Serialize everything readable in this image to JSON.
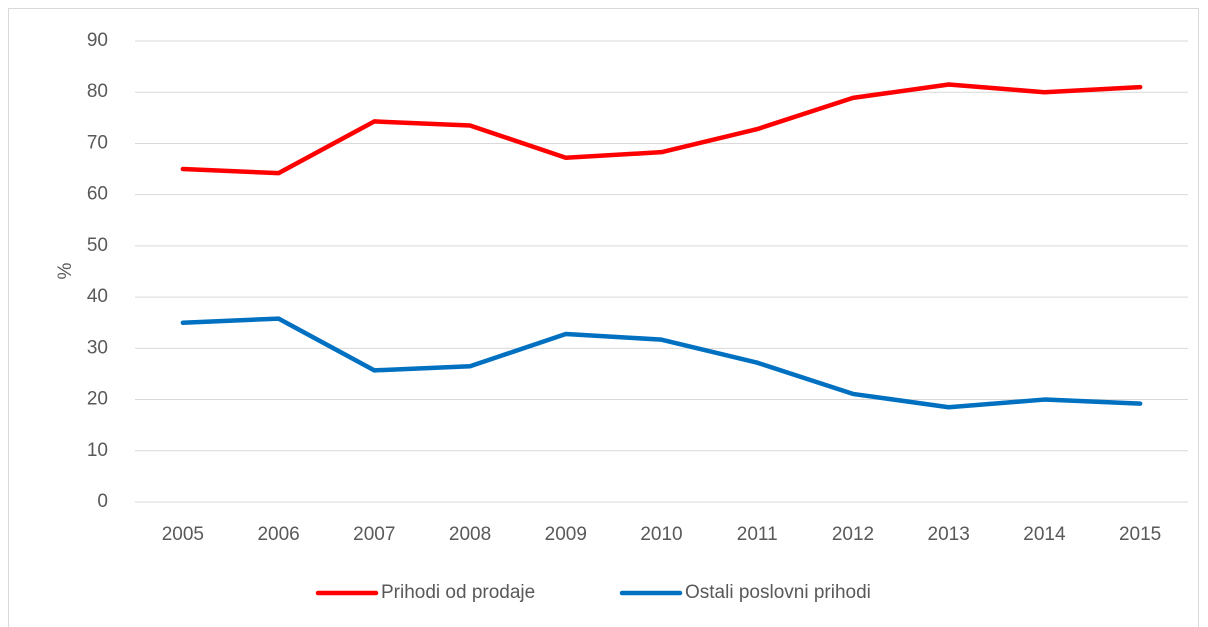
{
  "chart_data": {
    "type": "line",
    "ylabel": "%",
    "categories": [
      "2005",
      "2006",
      "2007",
      "2008",
      "2009",
      "2010",
      "2011",
      "2012",
      "2013",
      "2014",
      "2015"
    ],
    "series": [
      {
        "name": "Prihodi od prodaje",
        "color": "#ff0000",
        "values": [
          65,
          64.2,
          74.3,
          73.5,
          67.2,
          68.3,
          72.8,
          78.9,
          81.5,
          80,
          81
        ]
      },
      {
        "name": "Ostali poslovni prihodi",
        "color": "#0070c0",
        "values": [
          35,
          35.8,
          25.7,
          26.5,
          32.8,
          31.7,
          27.2,
          21.1,
          18.5,
          20,
          19.2
        ]
      }
    ],
    "ylim": [
      0,
      90
    ],
    "yticks": [
      0,
      10,
      20,
      30,
      40,
      50,
      60,
      70,
      80,
      90
    ],
    "grid": true,
    "legend": "bottom"
  }
}
